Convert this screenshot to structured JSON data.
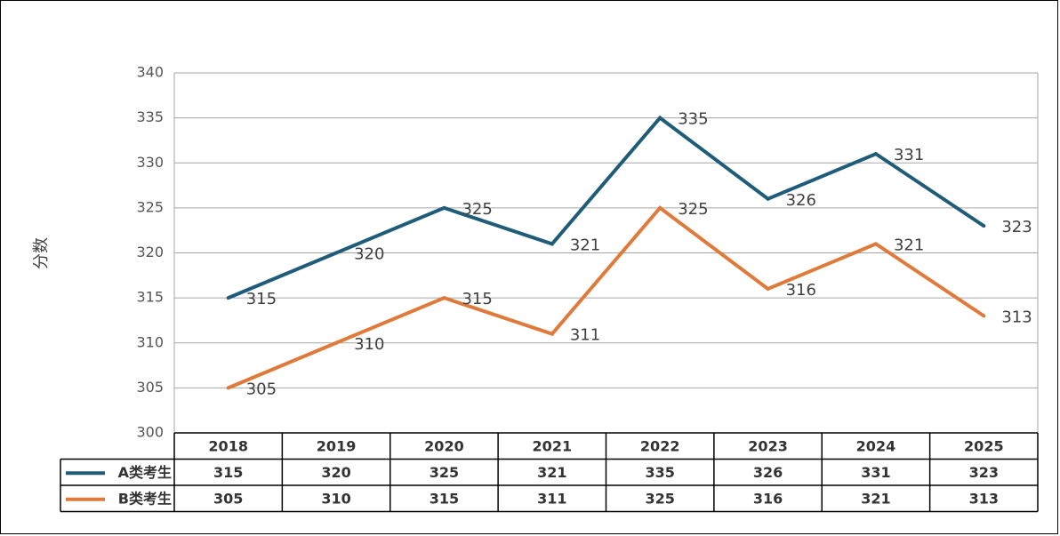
{
  "chart_data": {
    "type": "line",
    "title": "",
    "xlabel": "",
    "ylabel": "分数",
    "ylim": [
      300,
      340
    ],
    "yticks": [
      300,
      305,
      310,
      315,
      320,
      325,
      330,
      335,
      340
    ],
    "grid": true,
    "legend": "data-table",
    "categories": [
      "2018",
      "2019",
      "2020",
      "2021",
      "2022",
      "2023",
      "2024",
      "2025"
    ],
    "series": [
      {
        "name": "A类考生",
        "color": "#1f5c7a",
        "values": [
          315,
          320,
          325,
          321,
          335,
          326,
          331,
          323
        ]
      },
      {
        "name": "B类考生",
        "color": "#e07a3b",
        "values": [
          305,
          310,
          315,
          311,
          325,
          316,
          321,
          313
        ]
      }
    ]
  }
}
